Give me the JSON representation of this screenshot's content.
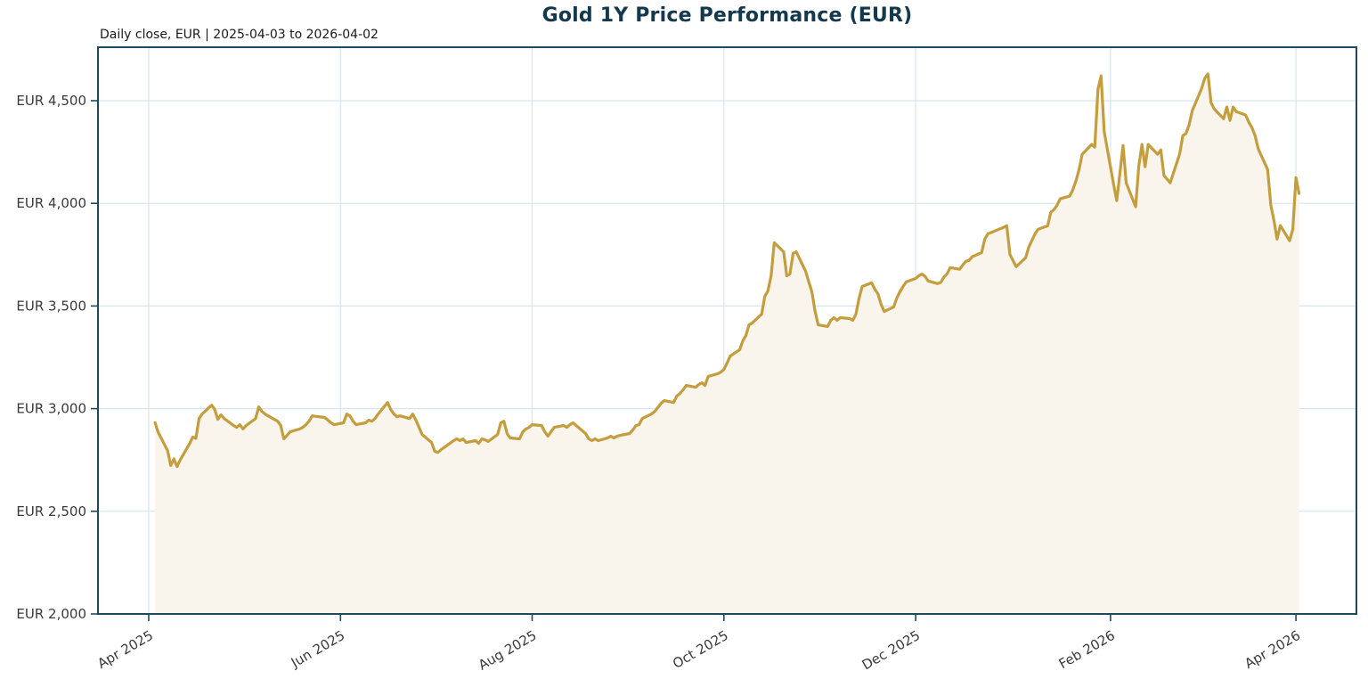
{
  "header": {
    "title": "Gold 1Y Price Performance (EUR)",
    "subtitle": "Daily close, EUR | 2025-04-03 to 2026-04-02"
  },
  "chart_data": {
    "type": "area",
    "title": "Gold 1Y Price Performance (EUR)",
    "subtitle": "Daily close, EUR | 2025-04-03 to 2026-04-02",
    "unit": "EUR",
    "legend": "none",
    "grid": "on",
    "x_axis": {
      "tick_labels": [
        "Apr 2025",
        "Jun 2025",
        "Aug 2025",
        "Oct 2025",
        "Dec 2025",
        "Feb 2026",
        "Apr 2026"
      ],
      "tick_dates": [
        "2025-04-01",
        "2025-06-01",
        "2025-08-01",
        "2025-10-01",
        "2025-12-01",
        "2026-02-01",
        "2026-04-01"
      ],
      "range": [
        "2025-04-03",
        "2026-04-02"
      ]
    },
    "y_axis": {
      "min": 2000,
      "max": 4760,
      "tick_values": [
        2000,
        2500,
        3000,
        3500,
        4000,
        4500
      ],
      "tick_labels": [
        "EUR 2,000",
        "EUR 2,500",
        "EUR 3,000",
        "EUR 3,500",
        "EUR 4,000",
        "EUR 4,500"
      ]
    },
    "colors": {
      "line": "#c49d3d",
      "fill": "#f9f5ec",
      "grid": "#d7e5ee",
      "frame": "#1c4a5e",
      "title": "#14384e",
      "tick_text": "#3a3a3a"
    },
    "series": [
      {
        "name": "Gold daily close (EUR)",
        "points": [
          [
            "2025-04-03",
            2932
          ],
          [
            "2025-04-04",
            2885
          ],
          [
            "2025-04-07",
            2795
          ],
          [
            "2025-04-08",
            2723
          ],
          [
            "2025-04-09",
            2755
          ],
          [
            "2025-04-10",
            2718
          ],
          [
            "2025-04-11",
            2750
          ],
          [
            "2025-04-14",
            2830
          ],
          [
            "2025-04-15",
            2862
          ],
          [
            "2025-04-16",
            2855
          ],
          [
            "2025-04-17",
            2952
          ],
          [
            "2025-04-18",
            2974
          ],
          [
            "2025-04-21",
            3017
          ],
          [
            "2025-04-22",
            2996
          ],
          [
            "2025-04-23",
            2948
          ],
          [
            "2025-04-24",
            2970
          ],
          [
            "2025-04-25",
            2952
          ],
          [
            "2025-04-28",
            2918
          ],
          [
            "2025-04-29",
            2909
          ],
          [
            "2025-04-30",
            2922
          ],
          [
            "2025-05-01",
            2901
          ],
          [
            "2025-05-02",
            2918
          ],
          [
            "2025-05-05",
            2952
          ],
          [
            "2025-05-06",
            3009
          ],
          [
            "2025-05-07",
            2987
          ],
          [
            "2025-05-08",
            2974
          ],
          [
            "2025-05-09",
            2965
          ],
          [
            "2025-05-12",
            2939
          ],
          [
            "2025-05-13",
            2918
          ],
          [
            "2025-05-14",
            2853
          ],
          [
            "2025-05-15",
            2870
          ],
          [
            "2025-05-16",
            2887
          ],
          [
            "2025-05-19",
            2901
          ],
          [
            "2025-05-20",
            2909
          ],
          [
            "2025-05-21",
            2922
          ],
          [
            "2025-05-22",
            2939
          ],
          [
            "2025-05-23",
            2965
          ],
          [
            "2025-05-27",
            2957
          ],
          [
            "2025-05-28",
            2944
          ],
          [
            "2025-05-29",
            2931
          ],
          [
            "2025-05-30",
            2922
          ],
          [
            "2025-06-02",
            2931
          ],
          [
            "2025-06-03",
            2974
          ],
          [
            "2025-06-04",
            2965
          ],
          [
            "2025-06-05",
            2939
          ],
          [
            "2025-06-06",
            2922
          ],
          [
            "2025-06-09",
            2931
          ],
          [
            "2025-06-10",
            2944
          ],
          [
            "2025-06-11",
            2939
          ],
          [
            "2025-06-12",
            2952
          ],
          [
            "2025-06-13",
            2974
          ],
          [
            "2025-06-16",
            3030
          ],
          [
            "2025-06-17",
            2996
          ],
          [
            "2025-06-18",
            2974
          ],
          [
            "2025-06-19",
            2961
          ],
          [
            "2025-06-20",
            2965
          ],
          [
            "2025-06-23",
            2952
          ],
          [
            "2025-06-24",
            2974
          ],
          [
            "2025-06-25",
            2944
          ],
          [
            "2025-06-26",
            2909
          ],
          [
            "2025-06-27",
            2874
          ],
          [
            "2025-06-30",
            2835
          ],
          [
            "2025-07-01",
            2792
          ],
          [
            "2025-07-02",
            2787
          ],
          [
            "2025-07-03",
            2800
          ],
          [
            "2025-07-07",
            2844
          ],
          [
            "2025-07-08",
            2853
          ],
          [
            "2025-07-09",
            2844
          ],
          [
            "2025-07-10",
            2853
          ],
          [
            "2025-07-11",
            2835
          ],
          [
            "2025-07-14",
            2844
          ],
          [
            "2025-07-15",
            2831
          ],
          [
            "2025-07-16",
            2853
          ],
          [
            "2025-07-17",
            2848
          ],
          [
            "2025-07-18",
            2840
          ],
          [
            "2025-07-21",
            2874
          ],
          [
            "2025-07-22",
            2931
          ],
          [
            "2025-07-23",
            2939
          ],
          [
            "2025-07-24",
            2879
          ],
          [
            "2025-07-25",
            2857
          ],
          [
            "2025-07-28",
            2853
          ],
          [
            "2025-07-29",
            2887
          ],
          [
            "2025-07-30",
            2901
          ],
          [
            "2025-07-31",
            2909
          ],
          [
            "2025-08-01",
            2922
          ],
          [
            "2025-08-04",
            2918
          ],
          [
            "2025-08-05",
            2887
          ],
          [
            "2025-08-06",
            2866
          ],
          [
            "2025-08-07",
            2887
          ],
          [
            "2025-08-08",
            2909
          ],
          [
            "2025-08-11",
            2918
          ],
          [
            "2025-08-12",
            2909
          ],
          [
            "2025-08-13",
            2922
          ],
          [
            "2025-08-14",
            2931
          ],
          [
            "2025-08-15",
            2918
          ],
          [
            "2025-08-18",
            2879
          ],
          [
            "2025-08-19",
            2853
          ],
          [
            "2025-08-20",
            2844
          ],
          [
            "2025-08-21",
            2853
          ],
          [
            "2025-08-22",
            2844
          ],
          [
            "2025-08-25",
            2857
          ],
          [
            "2025-08-26",
            2866
          ],
          [
            "2025-08-27",
            2857
          ],
          [
            "2025-08-28",
            2866
          ],
          [
            "2025-08-29",
            2870
          ],
          [
            "2025-09-01",
            2879
          ],
          [
            "2025-09-02",
            2896
          ],
          [
            "2025-09-03",
            2918
          ],
          [
            "2025-09-04",
            2922
          ],
          [
            "2025-09-05",
            2952
          ],
          [
            "2025-09-08",
            2974
          ],
          [
            "2025-09-09",
            2987
          ],
          [
            "2025-09-10",
            3005
          ],
          [
            "2025-09-11",
            3026
          ],
          [
            "2025-09-12",
            3039
          ],
          [
            "2025-09-15",
            3030
          ],
          [
            "2025-09-16",
            3061
          ],
          [
            "2025-09-17",
            3074
          ],
          [
            "2025-09-18",
            3091
          ],
          [
            "2025-09-19",
            3113
          ],
          [
            "2025-09-22",
            3104
          ],
          [
            "2025-09-23",
            3118
          ],
          [
            "2025-09-24",
            3126
          ],
          [
            "2025-09-25",
            3113
          ],
          [
            "2025-09-26",
            3157
          ],
          [
            "2025-09-29",
            3170
          ],
          [
            "2025-09-30",
            3178
          ],
          [
            "2025-10-01",
            3191
          ],
          [
            "2025-10-02",
            3222
          ],
          [
            "2025-10-03",
            3256
          ],
          [
            "2025-10-06",
            3287
          ],
          [
            "2025-10-07",
            3330
          ],
          [
            "2025-10-08",
            3356
          ],
          [
            "2025-10-09",
            3408
          ],
          [
            "2025-10-10",
            3417
          ],
          [
            "2025-10-13",
            3460
          ],
          [
            "2025-10-14",
            3547
          ],
          [
            "2025-10-15",
            3573
          ],
          [
            "2025-10-16",
            3647
          ],
          [
            "2025-10-17",
            3808
          ],
          [
            "2025-10-20",
            3764
          ],
          [
            "2025-10-21",
            3647
          ],
          [
            "2025-10-22",
            3656
          ],
          [
            "2025-10-23",
            3756
          ],
          [
            "2025-10-24",
            3764
          ],
          [
            "2025-10-27",
            3669
          ],
          [
            "2025-10-28",
            3617
          ],
          [
            "2025-10-29",
            3569
          ],
          [
            "2025-10-30",
            3473
          ],
          [
            "2025-10-31",
            3408
          ],
          [
            "2025-11-03",
            3400
          ],
          [
            "2025-11-04",
            3430
          ],
          [
            "2025-11-05",
            3443
          ],
          [
            "2025-11-06",
            3430
          ],
          [
            "2025-11-07",
            3443
          ],
          [
            "2025-11-10",
            3439
          ],
          [
            "2025-11-11",
            3430
          ],
          [
            "2025-11-12",
            3460
          ],
          [
            "2025-11-13",
            3538
          ],
          [
            "2025-11-14",
            3595
          ],
          [
            "2025-11-17",
            3613
          ],
          [
            "2025-11-18",
            3582
          ],
          [
            "2025-11-19",
            3560
          ],
          [
            "2025-11-20",
            3508
          ],
          [
            "2025-11-21",
            3473
          ],
          [
            "2025-11-24",
            3495
          ],
          [
            "2025-11-25",
            3538
          ],
          [
            "2025-11-26",
            3569
          ],
          [
            "2025-11-27",
            3595
          ],
          [
            "2025-11-28",
            3617
          ],
          [
            "2025-12-01",
            3634
          ],
          [
            "2025-12-02",
            3647
          ],
          [
            "2025-12-03",
            3656
          ],
          [
            "2025-12-04",
            3644
          ],
          [
            "2025-12-05",
            3622
          ],
          [
            "2025-12-08",
            3609
          ],
          [
            "2025-12-09",
            3615
          ],
          [
            "2025-12-10",
            3640
          ],
          [
            "2025-12-11",
            3657
          ],
          [
            "2025-12-12",
            3687
          ],
          [
            "2025-12-15",
            3679
          ],
          [
            "2025-12-16",
            3700
          ],
          [
            "2025-12-17",
            3718
          ],
          [
            "2025-12-18",
            3722
          ],
          [
            "2025-12-19",
            3740
          ],
          [
            "2025-12-22",
            3760
          ],
          [
            "2025-12-23",
            3826
          ],
          [
            "2025-12-24",
            3852
          ],
          [
            "2025-12-29",
            3883
          ],
          [
            "2025-12-30",
            3891
          ],
          [
            "2025-12-31",
            3750
          ],
          [
            "2026-01-02",
            3692
          ],
          [
            "2026-01-05",
            3735
          ],
          [
            "2026-01-06",
            3787
          ],
          [
            "2026-01-07",
            3820
          ],
          [
            "2026-01-08",
            3852
          ],
          [
            "2026-01-09",
            3874
          ],
          [
            "2026-01-12",
            3890
          ],
          [
            "2026-01-13",
            3956
          ],
          [
            "2026-01-14",
            3969
          ],
          [
            "2026-01-15",
            3991
          ],
          [
            "2026-01-16",
            4022
          ],
          [
            "2026-01-19",
            4035
          ],
          [
            "2026-01-20",
            4065
          ],
          [
            "2026-01-21",
            4110
          ],
          [
            "2026-01-22",
            4165
          ],
          [
            "2026-01-23",
            4239
          ],
          [
            "2026-01-26",
            4287
          ],
          [
            "2026-01-27",
            4274
          ],
          [
            "2026-01-28",
            4556
          ],
          [
            "2026-01-29",
            4621
          ],
          [
            "2026-01-30",
            4350
          ],
          [
            "2026-02-02",
            4091
          ],
          [
            "2026-02-03",
            4013
          ],
          [
            "2026-02-04",
            4150
          ],
          [
            "2026-02-05",
            4282
          ],
          [
            "2026-02-06",
            4100
          ],
          [
            "2026-02-09",
            3983
          ],
          [
            "2026-02-10",
            4180
          ],
          [
            "2026-02-11",
            4287
          ],
          [
            "2026-02-12",
            4178
          ],
          [
            "2026-02-13",
            4287
          ],
          [
            "2026-02-16",
            4239
          ],
          [
            "2026-02-17",
            4260
          ],
          [
            "2026-02-18",
            4135
          ],
          [
            "2026-02-19",
            4118
          ],
          [
            "2026-02-20",
            4100
          ],
          [
            "2026-02-23",
            4240
          ],
          [
            "2026-02-24",
            4330
          ],
          [
            "2026-02-25",
            4340
          ],
          [
            "2026-02-26",
            4382
          ],
          [
            "2026-02-27",
            4450
          ],
          [
            "2026-03-02",
            4560
          ],
          [
            "2026-03-03",
            4610
          ],
          [
            "2026-03-04",
            4630
          ],
          [
            "2026-03-05",
            4490
          ],
          [
            "2026-03-06",
            4460
          ],
          [
            "2026-03-09",
            4412
          ],
          [
            "2026-03-10",
            4469
          ],
          [
            "2026-03-11",
            4404
          ],
          [
            "2026-03-12",
            4469
          ],
          [
            "2026-03-13",
            4447
          ],
          [
            "2026-03-16",
            4430
          ],
          [
            "2026-03-17",
            4395
          ],
          [
            "2026-03-18",
            4369
          ],
          [
            "2026-03-19",
            4330
          ],
          [
            "2026-03-20",
            4265
          ],
          [
            "2026-03-23",
            4165
          ],
          [
            "2026-03-24",
            3991
          ],
          [
            "2026-03-25",
            3917
          ],
          [
            "2026-03-26",
            3826
          ],
          [
            "2026-03-27",
            3892
          ],
          [
            "2026-03-30",
            3818
          ],
          [
            "2026-03-31",
            3874
          ],
          [
            "2026-04-01",
            4125
          ],
          [
            "2026-04-02",
            4048
          ]
        ]
      }
    ]
  }
}
